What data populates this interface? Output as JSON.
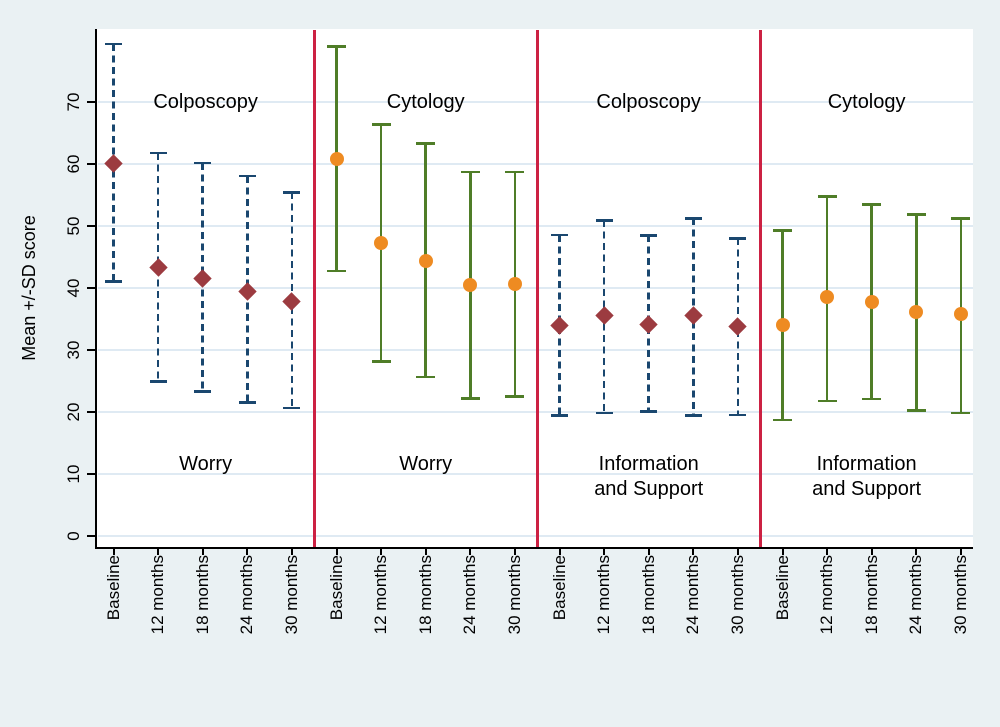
{
  "figure": {
    "background_color": "#eaf1f3",
    "plot_background_color": "#ffffff",
    "grid_color": "#dfeaf3",
    "axis_color": "#000000",
    "separator_color": "#cc2143",
    "text_color": "#000000"
  },
  "y_axis": {
    "title": "Mean +/-SD score",
    "ticks": [
      0,
      10,
      20,
      30,
      40,
      50,
      60,
      70
    ]
  },
  "x_axis": {
    "categories": [
      "Baseline",
      "12 months",
      "18 months",
      "24 months",
      "30 months"
    ]
  },
  "chart_data": {
    "type": "errorbar",
    "title": "",
    "ylabel": "Mean +/-SD score",
    "xlabel": "",
    "y_tick_values": [
      0,
      10,
      20,
      30,
      40,
      50,
      60,
      70
    ],
    "y_display_range": [
      -1.5,
      81.8
    ],
    "grid": true,
    "legend_position": "none",
    "error_bar_meaning": "mean plus/minus one standard deviation",
    "categories": [
      "Baseline",
      "12 months",
      "18 months",
      "24 months",
      "30 months"
    ],
    "series_styles": {
      "colposcopy": {
        "marker": "diamond",
        "marker_color": "#9c3b40",
        "line_color": "#1a476f",
        "line_style": "dashed"
      },
      "cytology": {
        "marker": "circle",
        "marker_color": "#ee8b22",
        "line_color": "#4f7d28",
        "line_style": "solid"
      }
    },
    "panels": [
      {
        "treatment": "Colposcopy",
        "outcome": "Worry",
        "outcome_lines": [
          "Worry"
        ],
        "series": "colposcopy",
        "points": [
          {
            "label": "Baseline",
            "mean": 60.1,
            "lower": 41.0,
            "upper": 79.3
          },
          {
            "label": "12 months",
            "mean": 43.3,
            "lower": 24.9,
            "upper": 61.8
          },
          {
            "label": "18 months",
            "mean": 41.6,
            "lower": 23.3,
            "upper": 60.2
          },
          {
            "label": "24 months",
            "mean": 39.5,
            "lower": 21.5,
            "upper": 58.1
          },
          {
            "label": "30 months",
            "mean": 37.8,
            "lower": 20.6,
            "upper": 55.4
          }
        ]
      },
      {
        "treatment": "Cytology",
        "outcome": "Worry",
        "outcome_lines": [
          "Worry"
        ],
        "series": "cytology",
        "points": [
          {
            "label": "Baseline",
            "mean": 60.7,
            "lower": 42.7,
            "upper": 78.9
          },
          {
            "label": "12 months",
            "mean": 47.3,
            "lower": 28.1,
            "upper": 66.4
          },
          {
            "label": "18 months",
            "mean": 44.3,
            "lower": 25.6,
            "upper": 63.3
          },
          {
            "label": "24 months",
            "mean": 40.5,
            "lower": 22.2,
            "upper": 58.7
          },
          {
            "label": "30 months",
            "mean": 40.6,
            "lower": 22.5,
            "upper": 58.7
          }
        ]
      },
      {
        "treatment": "Colposcopy",
        "outcome": "Information and Support",
        "outcome_lines": [
          "Information",
          "and Support"
        ],
        "series": "colposcopy",
        "points": [
          {
            "label": "Baseline",
            "mean": 34.0,
            "lower": 19.4,
            "upper": 48.6
          },
          {
            "label": "12 months",
            "mean": 35.5,
            "lower": 19.8,
            "upper": 50.9
          },
          {
            "label": "18 months",
            "mean": 34.2,
            "lower": 20.1,
            "upper": 48.5
          },
          {
            "label": "24 months",
            "mean": 35.5,
            "lower": 19.4,
            "upper": 51.2
          },
          {
            "label": "30 months",
            "mean": 33.8,
            "lower": 19.5,
            "upper": 48.0
          }
        ]
      },
      {
        "treatment": "Cytology",
        "outcome": "Information and Support",
        "outcome_lines": [
          "Information",
          "and Support"
        ],
        "series": "cytology",
        "points": [
          {
            "label": "Baseline",
            "mean": 34.0,
            "lower": 18.7,
            "upper": 49.3
          },
          {
            "label": "12 months",
            "mean": 38.5,
            "lower": 21.8,
            "upper": 54.8
          },
          {
            "label": "18 months",
            "mean": 37.7,
            "lower": 22.1,
            "upper": 53.5
          },
          {
            "label": "24 months",
            "mean": 36.2,
            "lower": 20.2,
            "upper": 51.9
          },
          {
            "label": "30 months",
            "mean": 35.8,
            "lower": 19.8,
            "upper": 51.2
          }
        ]
      }
    ]
  }
}
